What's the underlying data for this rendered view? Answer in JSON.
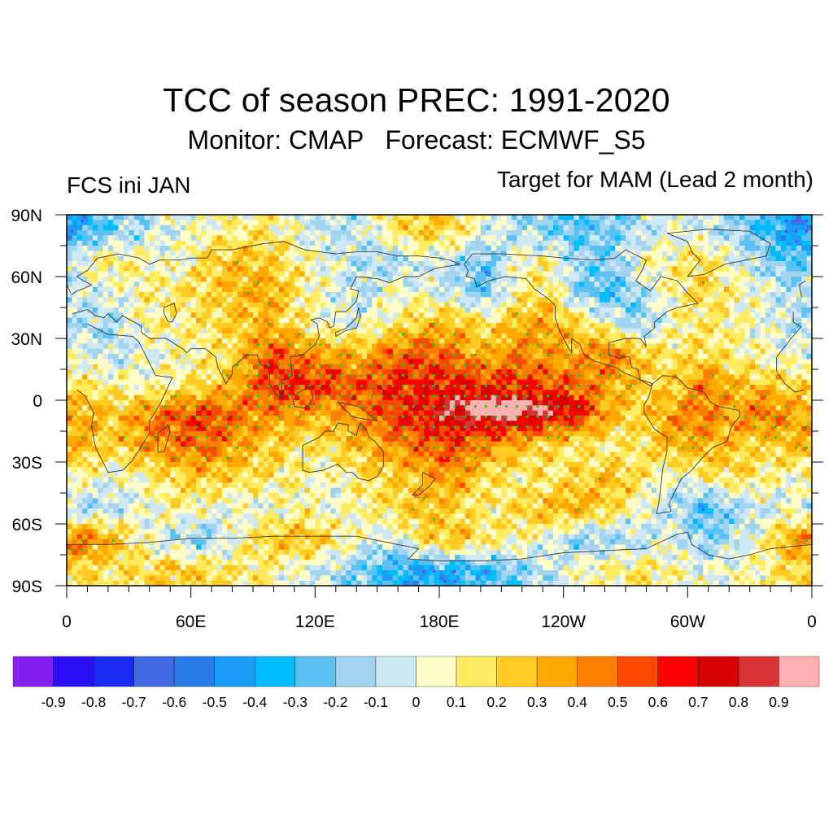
{
  "header": {
    "title": "TCC of season PREC: 1991-2020",
    "subtitle": "Monitor: CMAP   Forecast: ECMWF_S5",
    "left_label": "FCS ini JAN",
    "right_label": "Target for MAM (Lead 2 month)"
  },
  "chart_data": {
    "type": "heatmap",
    "title": "TCC of season PREC: 1991-2020",
    "subtitle": "Monitor: CMAP   Forecast: ECMWF_S5",
    "left_string": "FCS ini JAN",
    "right_string": "Target for MAM (Lead 2 month)",
    "variable": "Temporal correlation coefficient (TCC) of seasonal precipitation",
    "projection": "cylindrical equidistant",
    "x_range": [
      0,
      360
    ],
    "y_range": [
      -90,
      90
    ],
    "x_ticks": [
      {
        "value": 0,
        "label": "0"
      },
      {
        "value": 60,
        "label": "60E"
      },
      {
        "value": 120,
        "label": "120E"
      },
      {
        "value": 180,
        "label": "180E"
      },
      {
        "value": 240,
        "label": "120W"
      },
      {
        "value": 300,
        "label": "60W"
      },
      {
        "value": 360,
        "label": "0"
      }
    ],
    "y_ticks": [
      {
        "value": 90,
        "label": "90N"
      },
      {
        "value": 60,
        "label": "60N"
      },
      {
        "value": 30,
        "label": "30N"
      },
      {
        "value": 0,
        "label": "0"
      },
      {
        "value": -30,
        "label": "30S"
      },
      {
        "value": -60,
        "label": "60S"
      },
      {
        "value": -90,
        "label": "90S"
      }
    ],
    "colorbar": {
      "levels": [
        -0.9,
        -0.8,
        -0.7,
        -0.6,
        -0.5,
        -0.4,
        -0.3,
        -0.2,
        -0.1,
        0,
        0.1,
        0.2,
        0.3,
        0.4,
        0.5,
        0.6,
        0.7,
        0.8,
        0.9
      ],
      "labels": [
        "-0.9",
        "-0.8",
        "-0.7",
        "-0.6",
        "-0.5",
        "-0.4",
        "-0.3",
        "-0.2",
        "-0.1",
        "0",
        "0.1",
        "0.2",
        "0.3",
        "0.4",
        "0.5",
        "0.6",
        "0.7",
        "0.8",
        "0.9"
      ],
      "colors": [
        "#8221f0",
        "#2b0ff5",
        "#1a2af0",
        "#4068e0",
        "#2a7de8",
        "#189cf5",
        "#00bcfd",
        "#5ac2f2",
        "#a2d4f0",
        "#cfe8f6",
        "#fffcc8",
        "#ffeb60",
        "#ffcb22",
        "#ffa900",
        "#ff7f00",
        "#ff4900",
        "#ff0000",
        "#d80000",
        "#d93232",
        "#ffb0b0"
      ]
    },
    "stippling": {
      "description": "Significant grid points",
      "positive_color": "#1ec81e",
      "negative_color": "#a020f0",
      "threshold_abs": 0.4
    },
    "grid_resolution_deg": 15,
    "grid_lat_centers": [
      82.5,
      67.5,
      52.5,
      37.5,
      22.5,
      7.5,
      -7.5,
      -22.5,
      -37.5,
      -52.5,
      -67.5,
      -82.5
    ],
    "grid_lon_centers": [
      7.5,
      22.5,
      37.5,
      52.5,
      67.5,
      82.5,
      97.5,
      112.5,
      127.5,
      142.5,
      157.5,
      172.5,
      187.5,
      202.5,
      217.5,
      232.5,
      247.5,
      262.5,
      277.5,
      292.5,
      307.5,
      322.5,
      337.5,
      352.5
    ],
    "grid_values_estimated": [
      [
        -0.35,
        -0.2,
        -0.1,
        0.0,
        0.05,
        0.1,
        0.15,
        0.0,
        -0.1,
        -0.05,
        0.15,
        0.25,
        0.2,
        0.0,
        -0.1,
        -0.2,
        -0.25,
        -0.2,
        -0.1,
        0.0,
        -0.05,
        -0.15,
        -0.3,
        -0.45
      ],
      [
        0.05,
        0.15,
        0.1,
        0.0,
        0.2,
        0.3,
        0.25,
        0.1,
        0.0,
        -0.1,
        -0.15,
        0.0,
        -0.1,
        -0.25,
        0.05,
        0.1,
        -0.15,
        -0.2,
        0.05,
        0.1,
        0.2,
        0.0,
        -0.15,
        -0.3
      ],
      [
        -0.05,
        0.0,
        0.1,
        0.15,
        0.2,
        0.3,
        0.35,
        0.15,
        0.0,
        -0.1,
        0.05,
        0.0,
        -0.1,
        -0.25,
        0.1,
        0.2,
        -0.2,
        -0.3,
        -0.1,
        0.1,
        0.2,
        0.1,
        0.0,
        -0.1
      ],
      [
        -0.1,
        -0.15,
        0.1,
        0.1,
        0.15,
        0.25,
        0.3,
        0.15,
        0.0,
        0.0,
        0.1,
        0.25,
        0.3,
        0.15,
        0.3,
        0.35,
        0.2,
        0.0,
        -0.2,
        0.05,
        0.15,
        0.1,
        0.0,
        -0.1
      ],
      [
        0.0,
        -0.1,
        0.0,
        0.05,
        0.1,
        0.2,
        0.55,
        0.45,
        0.35,
        0.3,
        0.5,
        0.55,
        0.45,
        0.3,
        0.45,
        0.35,
        0.35,
        0.5,
        0.25,
        0.15,
        0.2,
        0.1,
        0.05,
        0.0
      ],
      [
        0.15,
        0.1,
        0.05,
        0.1,
        0.2,
        0.35,
        0.6,
        0.6,
        0.6,
        0.55,
        0.6,
        0.65,
        0.65,
        0.6,
        0.6,
        0.55,
        0.5,
        0.35,
        0.25,
        0.2,
        0.45,
        0.3,
        0.25,
        0.2
      ],
      [
        0.35,
        0.25,
        0.4,
        0.55,
        0.6,
        0.45,
        0.4,
        0.35,
        0.3,
        0.4,
        0.6,
        0.65,
        0.8,
        0.85,
        0.8,
        0.7,
        0.6,
        0.3,
        0.2,
        0.4,
        0.45,
        0.35,
        0.5,
        0.35
      ],
      [
        0.3,
        0.2,
        0.35,
        0.45,
        0.5,
        0.35,
        0.25,
        0.15,
        0.2,
        0.3,
        0.4,
        0.5,
        0.55,
        0.4,
        0.3,
        0.2,
        0.15,
        0.1,
        0.15,
        0.3,
        0.35,
        0.25,
        0.2,
        0.3
      ],
      [
        0.1,
        0.0,
        0.1,
        0.2,
        0.25,
        0.2,
        0.15,
        0.1,
        0.0,
        0.15,
        0.2,
        0.3,
        0.4,
        0.2,
        0.1,
        0.15,
        0.2,
        0.3,
        0.15,
        0.0,
        0.1,
        0.2,
        0.1,
        0.05
      ],
      [
        -0.15,
        -0.1,
        0.0,
        0.1,
        0.05,
        0.0,
        0.0,
        0.1,
        0.0,
        0.1,
        0.2,
        0.3,
        0.2,
        0.1,
        0.2,
        0.3,
        0.35,
        0.2,
        0.05,
        -0.1,
        -0.3,
        -0.15,
        -0.05,
        0.0
      ],
      [
        0.5,
        0.3,
        0.05,
        -0.1,
        -0.2,
        0.05,
        0.25,
        0.3,
        0.2,
        0.0,
        -0.05,
        0.2,
        0.3,
        0.15,
        0.1,
        0.0,
        -0.2,
        -0.15,
        -0.1,
        0.0,
        -0.2,
        -0.1,
        0.1,
        0.4
      ],
      [
        0.2,
        0.15,
        0.2,
        0.25,
        0.2,
        0.15,
        0.1,
        0.0,
        -0.1,
        -0.2,
        -0.35,
        -0.4,
        -0.35,
        -0.3,
        -0.2,
        -0.1,
        0.05,
        0.1,
        0.15,
        0.1,
        0.0,
        0.05,
        0.1,
        0.2
      ]
    ]
  }
}
